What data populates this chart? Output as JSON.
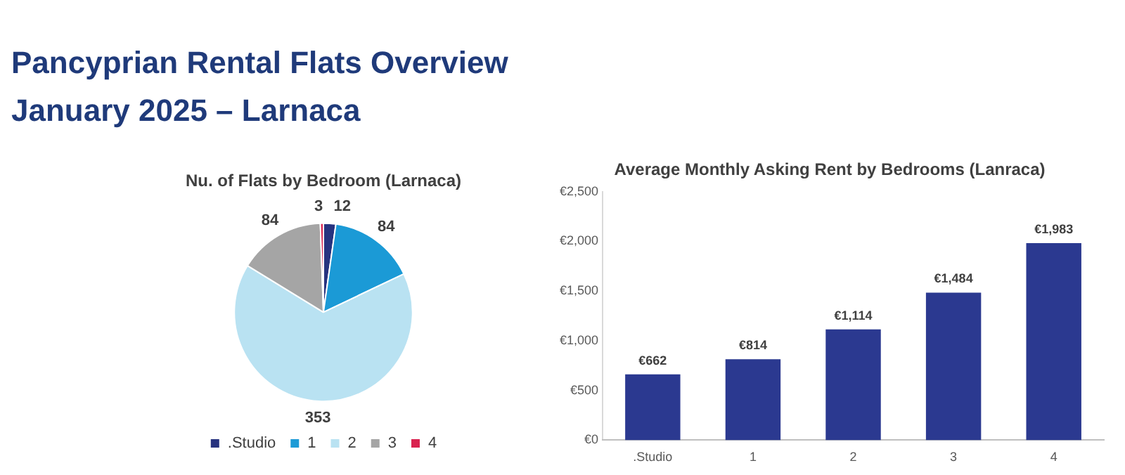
{
  "chart_data": [
    {
      "type": "other",
      "title": "Pancyprian Rental Flats Overview",
      "subtitle": "January 2025 – Larnaca"
    },
    {
      "type": "pie",
      "title": "Nu. of Flats by Bedroom (Larnaca)",
      "categories": [
        ".Studio",
        "1",
        "2",
        "3",
        "4"
      ],
      "values": [
        12,
        84,
        353,
        84,
        3
      ],
      "colors": [
        "#27337f",
        "#1b9ad6",
        "#b9e2f2",
        "#a5a5a5",
        "#d9224f"
      ],
      "data_labels": true,
      "legend": "bottom"
    },
    {
      "type": "bar",
      "title": "Average Monthly Asking Rent by Bedrooms (Lanraca)",
      "categories": [
        ".Studio",
        "1",
        "2",
        "3",
        "4"
      ],
      "values": [
        662,
        814,
        1114,
        1484,
        1983
      ],
      "value_labels": [
        "€662",
        "€814",
        "€1,114",
        "€1,484",
        "€1,983"
      ],
      "color": "#2b3990",
      "ylim": [
        0,
        2500
      ],
      "yticks": [
        {
          "value": 0,
          "label": "€0"
        },
        {
          "value": 500,
          "label": "€500"
        },
        {
          "value": 1000,
          "label": "€1,000"
        },
        {
          "value": 1500,
          "label": "€1,500"
        },
        {
          "value": 2000,
          "label": "€2,000"
        },
        {
          "value": 2500,
          "label": "€2,500"
        }
      ],
      "grid": false,
      "legend": false
    }
  ]
}
